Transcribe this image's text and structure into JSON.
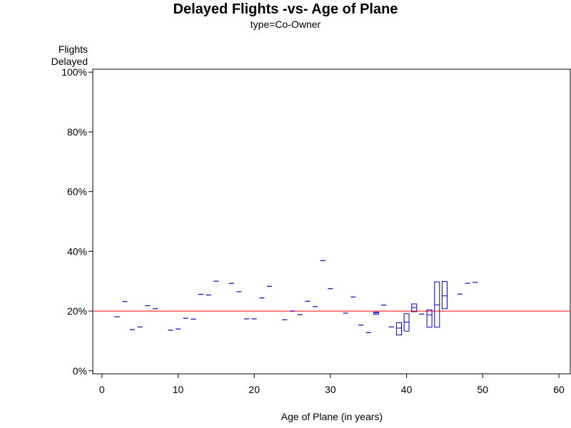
{
  "chart_data": {
    "type": "box",
    "title": "Delayed Flights -vs- Age of Plane",
    "subtitle": "type=Co-Owner",
    "ylabel": [
      "Flights",
      "Delayed"
    ],
    "xlabel": "Age of Plane (in years)",
    "xlim": [
      -1.2,
      61.5
    ],
    "ylim": [
      -1,
      101
    ],
    "xticks": [
      0,
      10,
      20,
      30,
      40,
      50,
      60
    ],
    "yticks": [
      0,
      20,
      40,
      60,
      80,
      100
    ],
    "ytick_labels": [
      "0%",
      "20%",
      "40%",
      "60%",
      "80%",
      "100%"
    ],
    "reference_line": {
      "y": 20,
      "color": "#ff0000"
    },
    "series_color": "#0000cc",
    "series": [
      {
        "x": 2,
        "value": 18.1
      },
      {
        "x": 3,
        "value": 23.2
      },
      {
        "x": 4,
        "value": 13.8
      },
      {
        "x": 5,
        "value": 14.7
      },
      {
        "x": 6,
        "value": 21.8
      },
      {
        "x": 7,
        "value": 20.8
      },
      {
        "x": 9,
        "value": 13.6
      },
      {
        "x": 10,
        "value": 14.0
      },
      {
        "x": 11,
        "value": 17.6
      },
      {
        "x": 12,
        "value": 17.3
      },
      {
        "x": 13,
        "value": 25.6
      },
      {
        "x": 14,
        "value": 25.4
      },
      {
        "x": 15,
        "value": 30.0
      },
      {
        "x": 17,
        "value": 29.3
      },
      {
        "x": 18,
        "value": 26.5
      },
      {
        "x": 19,
        "value": 17.4
      },
      {
        "x": 20,
        "value": 17.4
      },
      {
        "x": 21,
        "value": 24.4
      },
      {
        "x": 22,
        "value": 28.3
      },
      {
        "x": 24,
        "value": 17.1
      },
      {
        "x": 25,
        "value": 20.0
      },
      {
        "x": 26,
        "value": 18.8
      },
      {
        "x": 27,
        "value": 23.3
      },
      {
        "x": 28,
        "value": 21.5
      },
      {
        "x": 29,
        "value": 36.9
      },
      {
        "x": 30,
        "value": 27.5
      },
      {
        "x": 32,
        "value": 19.3
      },
      {
        "x": 33,
        "value": 24.7
      },
      {
        "x": 34,
        "value": 15.3
      },
      {
        "x": 35,
        "value": 12.8
      },
      {
        "x": 36,
        "q1": 18.9,
        "median": 19.4,
        "q3": 19.6
      },
      {
        "x": 37,
        "value": 22.0
      },
      {
        "x": 38,
        "value": 14.7
      },
      {
        "x": 39,
        "q1": 12.0,
        "median": 14.3,
        "q3": 16.1
      },
      {
        "x": 40,
        "q1": 13.3,
        "median": 16.3,
        "q3": 19.1
      },
      {
        "x": 41,
        "q1": 19.8,
        "median": 21.2,
        "q3": 22.4
      },
      {
        "x": 42,
        "value": 19.0
      },
      {
        "x": 43,
        "q1": 14.6,
        "median": 18.7,
        "q3": 20.4
      },
      {
        "x": 44,
        "q1": 14.6,
        "median": 22.1,
        "q3": 29.8
      },
      {
        "x": 45,
        "q1": 20.8,
        "median": 25.1,
        "q3": 29.9
      },
      {
        "x": 47,
        "value": 25.7
      },
      {
        "x": 48,
        "value": 29.3
      },
      {
        "x": 49,
        "value": 29.6
      }
    ]
  }
}
